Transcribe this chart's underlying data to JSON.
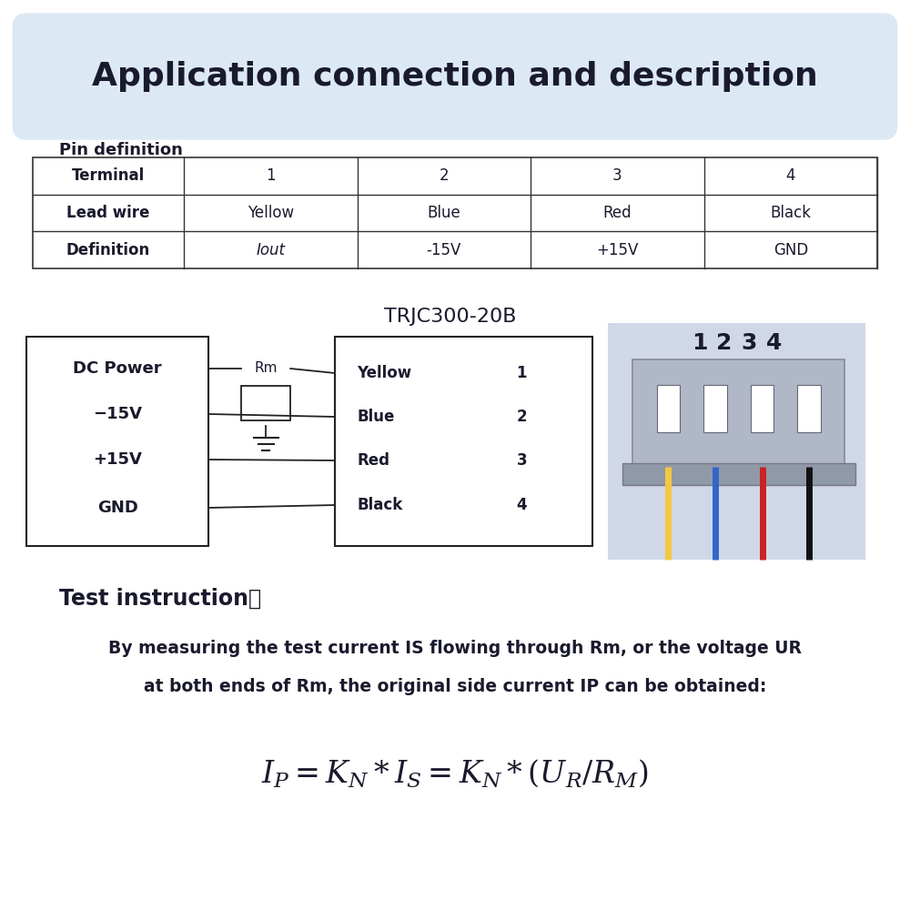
{
  "title": "Application connection and description",
  "title_bg": "#dce9f5",
  "pin_def_label": "Pin definition",
  "table_headers": [
    "Terminal",
    "1",
    "2",
    "3",
    "4"
  ],
  "table_row2": [
    "Lead wire",
    "Yellow",
    "Blue",
    "Red",
    "Black"
  ],
  "table_row3": [
    "Definition",
    "Iout",
    "-15V",
    "+15V",
    "GND"
  ],
  "sensor_label": "TRJC300-20B",
  "rm_label": "Rm",
  "wiring_rows": [
    {
      "label": "Yellow",
      "num": "1"
    },
    {
      "label": "Blue",
      "num": "2"
    },
    {
      "label": "Red",
      "num": "3"
    },
    {
      "label": "Black",
      "num": "4"
    }
  ],
  "left_labels": [
    "DC Power",
    "−15V",
    "+15V",
    "GND"
  ],
  "connector_nums": [
    "1",
    "2",
    "3",
    "4"
  ],
  "test_instruction_title": "Test instruction：",
  "test_instruction_body1": "By measuring the test current IS flowing through Rm, or the voltage UR",
  "test_instruction_body2": "at both ends of Rm, the original side current IP can be obtained:",
  "bg_color": "#ffffff",
  "text_color": "#1a1a2e",
  "connector_bg": "#d0d8e8"
}
